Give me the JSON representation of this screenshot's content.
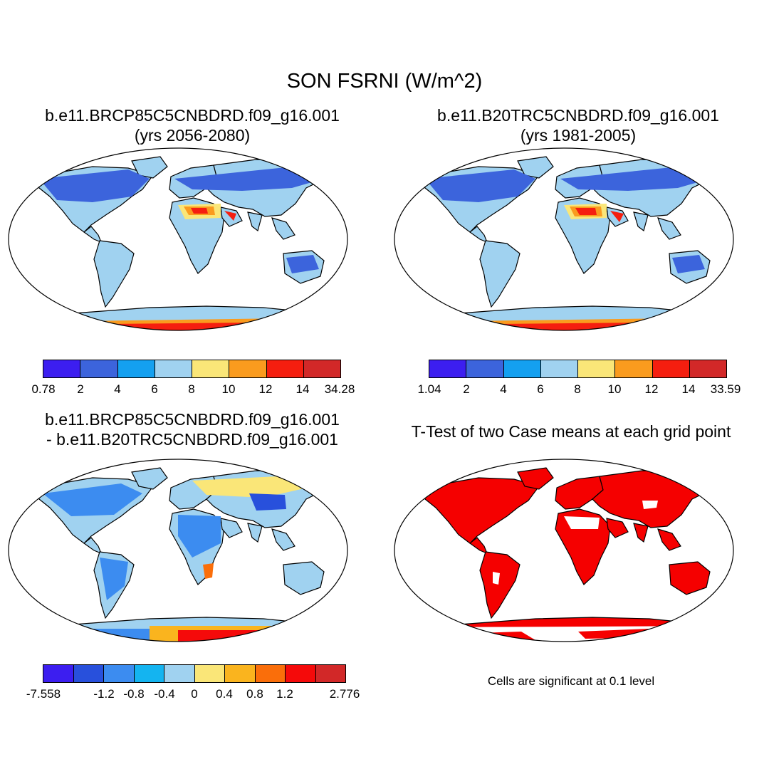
{
  "title": "SON FSRNI (W/m^2)",
  "panels": [
    {
      "title_lines": [
        "b.e11.BRCP85C5CNBDRD.f09_g16.001",
        "(yrs 2056-2080)"
      ],
      "colorbar": {
        "colors": [
          "#3c1ef0",
          "#3c64dc",
          "#14a0f0",
          "#a0d2f0",
          "#fae678",
          "#fa9b1e",
          "#f51e0f",
          "#d22828"
        ],
        "labels": [
          "0.78",
          "2",
          "4",
          "6",
          "8",
          "10",
          "12",
          "14",
          "34.28"
        ]
      }
    },
    {
      "title_lines": [
        "b.e11.B20TRC5CNBDRD.f09_g16.001",
        "(yrs 1981-2005)"
      ],
      "colorbar": {
        "colors": [
          "#3c1ef0",
          "#3c64dc",
          "#14a0f0",
          "#a0d2f0",
          "#fae678",
          "#fa9b1e",
          "#f51e0f",
          "#d22828"
        ],
        "labels": [
          "1.04",
          "2",
          "4",
          "6",
          "8",
          "10",
          "12",
          "14",
          "33.59"
        ]
      }
    },
    {
      "title_lines": [
        "b.e11.BRCP85C5CNBDRD.f09_g16.001",
        "- b.e11.B20TRC5CNBDRD.f09_g16.001"
      ],
      "colorbar": {
        "colors": [
          "#3c1ef0",
          "#2850dc",
          "#3c8cf0",
          "#14b4f0",
          "#a0d2f0",
          "#fae678",
          "#fab41e",
          "#fa6e0a",
          "#f50a0a",
          "#d22828"
        ],
        "labels": [
          "-7.558",
          "",
          "-1.2",
          "-0.8",
          "-0.4",
          "0",
          "0.4",
          "0.8",
          "1.2",
          "",
          "2.776"
        ]
      }
    },
    {
      "title_lines": [
        "T-Test of two Case means at each grid point"
      ],
      "note": "Cells are significant at 0.1 level"
    }
  ]
}
